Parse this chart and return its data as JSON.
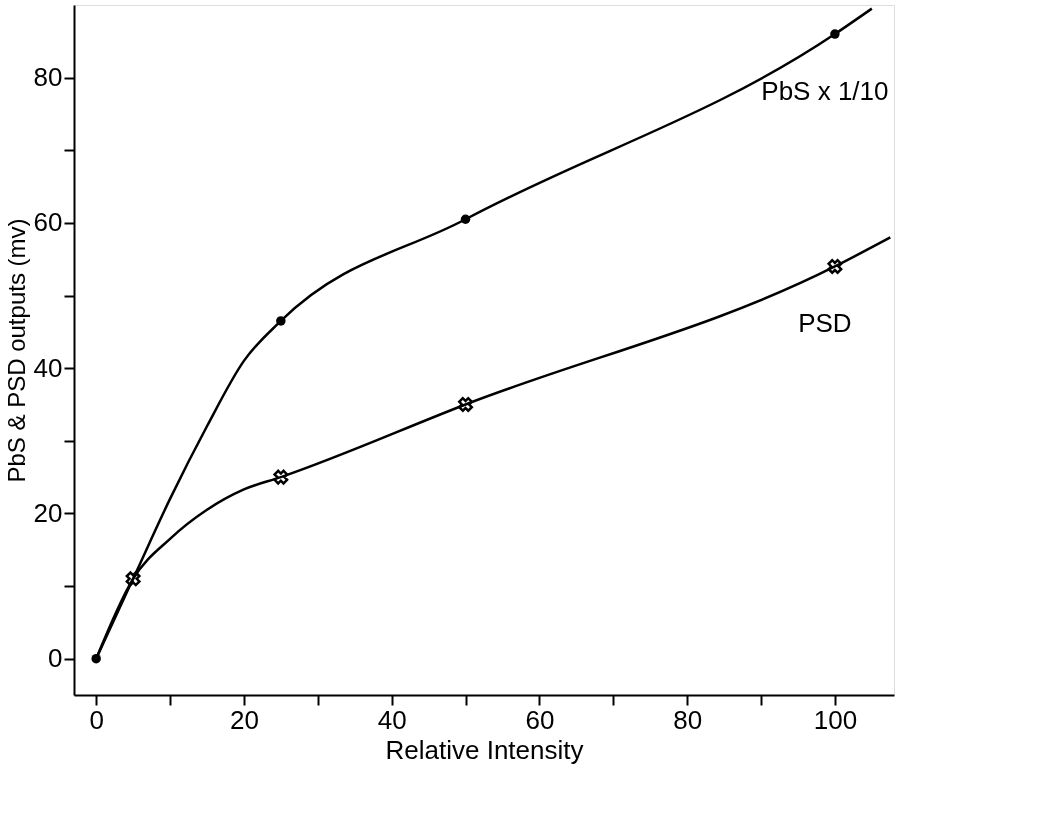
{
  "chart_data": {
    "type": "line",
    "xlabel": "Relative Intensity",
    "ylabel": "PbS & PSD outputs (mv)",
    "xlim": [
      -3,
      108
    ],
    "ylim": [
      -5,
      90
    ],
    "xticks": [
      0,
      {
        "value": 10,
        "label": null
      },
      20,
      {
        "value": 30,
        "label": null
      },
      40,
      {
        "value": 50,
        "label": null
      },
      60,
      {
        "value": 70,
        "label": null
      },
      80,
      {
        "value": 90,
        "label": null
      },
      100
    ],
    "yticks": [
      0,
      {
        "value": 10,
        "label": null
      },
      20,
      {
        "value": 30,
        "label": null
      },
      40,
      {
        "value": 50,
        "label": null
      },
      60,
      {
        "value": 70,
        "label": null
      },
      80
    ],
    "grid": false,
    "line_style": "solid",
    "series": [
      {
        "name": "PbS x 1/10",
        "marker": "none",
        "color": "#000000",
        "x": [
          0,
          5,
          10,
          15,
          20,
          25,
          50,
          100,
          105
        ],
        "values": [
          0,
          11,
          22,
          32,
          41,
          46.5,
          60.5,
          86,
          89.5
        ]
      },
      {
        "type": "scatter",
        "marker": "circle",
        "color": "#000000",
        "x": [
          0,
          25,
          50,
          100
        ],
        "values": [
          0,
          46.5,
          60.5,
          86
        ]
      },
      {
        "name": "PSD",
        "marker": "none",
        "color": "#000000",
        "x": [
          0,
          5,
          10,
          15,
          20,
          25,
          50,
          100,
          107.5
        ],
        "values": [
          0,
          11,
          16.5,
          20.5,
          23.3,
          25,
          35,
          54,
          58
        ]
      },
      {
        "type": "scatter",
        "marker": "cross",
        "color": "#000000",
        "x": [
          5,
          25,
          50,
          100
        ],
        "values": [
          11,
          25,
          35,
          54
        ]
      }
    ]
  }
}
